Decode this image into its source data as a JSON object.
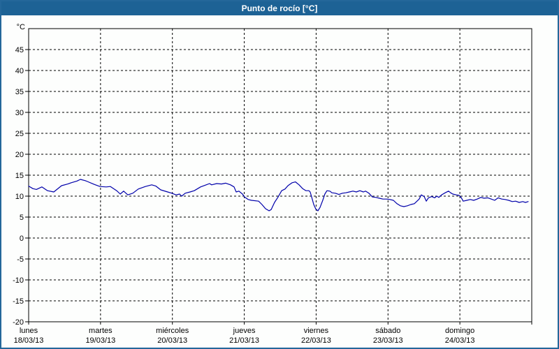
{
  "window": {
    "title": "Punto de rocío [°C]"
  },
  "colors": {
    "frame_blue": "#24679a",
    "titlebar_blue": "#1d6295",
    "title_text": "#ffffff",
    "plot_background": "#fdfefd",
    "line_blue": "#0000aa",
    "grid_color": "#000000"
  },
  "chart_data": {
    "type": "line",
    "title": "Punto de rocío [°C]",
    "ylabel": "°C",
    "xlabel": "",
    "ylim": [
      -20,
      50
    ],
    "xlim_hours": [
      0,
      168
    ],
    "grid": "dashed",
    "legend": "none",
    "y_ticks": [
      45,
      40,
      35,
      30,
      25,
      20,
      15,
      10,
      5,
      0,
      -5,
      -10,
      -15,
      -20
    ],
    "x_days": [
      {
        "name": "lunes",
        "date": "18/03/13"
      },
      {
        "name": "martes",
        "date": "19/03/13"
      },
      {
        "name": "miércoles",
        "date": "20/03/13"
      },
      {
        "name": "jueves",
        "date": "21/03/13"
      },
      {
        "name": "viernes",
        "date": "22/03/13"
      },
      {
        "name": "sábado",
        "date": "23/03/13"
      },
      {
        "name": "domingo",
        "date": "24/03/13"
      }
    ],
    "series": [
      {
        "name": "Punto de rocío",
        "color": "#0000aa",
        "points_hours_degC": [
          [
            0,
            12.4
          ],
          [
            1.4,
            11.8
          ],
          [
            2.6,
            11.6
          ],
          [
            4.4,
            12.2
          ],
          [
            6.3,
            11.3
          ],
          [
            8.4,
            11.0
          ],
          [
            11,
            12.5
          ],
          [
            13.1,
            12.9
          ],
          [
            14.2,
            13.2
          ],
          [
            16.1,
            13.6
          ],
          [
            17.3,
            14.0
          ],
          [
            18.9,
            13.7
          ],
          [
            19.6,
            13.5
          ],
          [
            21.9,
            12.8
          ],
          [
            23.8,
            12.3
          ],
          [
            25.9,
            12.2
          ],
          [
            27.3,
            12.3
          ],
          [
            29.4,
            11.3
          ],
          [
            30.6,
            10.5
          ],
          [
            31.7,
            11.2
          ],
          [
            33.1,
            10.3
          ],
          [
            34.8,
            10.7
          ],
          [
            36.6,
            11.7
          ],
          [
            39,
            12.3
          ],
          [
            41.1,
            12.7
          ],
          [
            42.5,
            12.4
          ],
          [
            44.1,
            11.5
          ],
          [
            46.4,
            11.0
          ],
          [
            47.8,
            10.7
          ],
          [
            49.2,
            10.3
          ],
          [
            50.4,
            10.5
          ],
          [
            51.1,
            10.0
          ],
          [
            52.3,
            10.7
          ],
          [
            53.9,
            11.0
          ],
          [
            55.3,
            11.3
          ],
          [
            57.4,
            12.2
          ],
          [
            59.3,
            12.7
          ],
          [
            60.4,
            13.0
          ],
          [
            61.1,
            12.7
          ],
          [
            62.8,
            13.0
          ],
          [
            64.4,
            12.9
          ],
          [
            65.8,
            13.1
          ],
          [
            67.4,
            12.7
          ],
          [
            68.6,
            12.2
          ],
          [
            69.3,
            11.0
          ],
          [
            70.2,
            11.2
          ],
          [
            71.4,
            10.5
          ],
          [
            72.1,
            9.8
          ],
          [
            73.3,
            9.2
          ],
          [
            74.4,
            9.0
          ],
          [
            76.8,
            8.8
          ],
          [
            77.9,
            8.0
          ],
          [
            79.1,
            7.0
          ],
          [
            80.3,
            6.5
          ],
          [
            81,
            6.8
          ],
          [
            82.1,
            8.5
          ],
          [
            83.3,
            9.8
          ],
          [
            84.5,
            11.3
          ],
          [
            85.6,
            11.7
          ],
          [
            86.6,
            12.5
          ],
          [
            88,
            13.2
          ],
          [
            89.1,
            13.4
          ],
          [
            90.3,
            12.7
          ],
          [
            91.5,
            11.8
          ],
          [
            92.6,
            11.3
          ],
          [
            93.6,
            11.3
          ],
          [
            94,
            11.0
          ],
          [
            94.5,
            9.8
          ],
          [
            95.2,
            8.0
          ],
          [
            95.9,
            6.9
          ],
          [
            96.6,
            6.5
          ],
          [
            97.3,
            7.3
          ],
          [
            98.2,
            9.0
          ],
          [
            98.9,
            10.5
          ],
          [
            99.6,
            11.3
          ],
          [
            100.6,
            11.2
          ],
          [
            101.3,
            10.8
          ],
          [
            102.4,
            10.7
          ],
          [
            103.6,
            10.4
          ],
          [
            104.8,
            10.7
          ],
          [
            105.9,
            10.8
          ],
          [
            107.1,
            11.0
          ],
          [
            108.3,
            11.2
          ],
          [
            109.4,
            11.0
          ],
          [
            110.6,
            11.3
          ],
          [
            111.8,
            11.0
          ],
          [
            112.5,
            11.2
          ],
          [
            113.6,
            10.7
          ],
          [
            114.8,
            9.8
          ],
          [
            116,
            9.7
          ],
          [
            117.1,
            9.5
          ],
          [
            118.3,
            9.3
          ],
          [
            119.5,
            9.3
          ],
          [
            120.6,
            9.2
          ],
          [
            121.8,
            9.0
          ],
          [
            123,
            8.2
          ],
          [
            124.1,
            7.7
          ],
          [
            125.3,
            7.5
          ],
          [
            126.5,
            7.7
          ],
          [
            127.6,
            8.0
          ],
          [
            128.8,
            8.2
          ],
          [
            130.4,
            9.3
          ],
          [
            131.1,
            10.3
          ],
          [
            132.1,
            9.9
          ],
          [
            132.8,
            8.8
          ],
          [
            133.5,
            9.6
          ],
          [
            134.6,
            9.9
          ],
          [
            135.6,
            9.6
          ],
          [
            136.3,
            10.0
          ],
          [
            137,
            9.7
          ],
          [
            137.9,
            10.3
          ],
          [
            139.1,
            10.8
          ],
          [
            140.2,
            11.2
          ],
          [
            140.9,
            10.8
          ],
          [
            141.6,
            10.5
          ],
          [
            142.8,
            10.3
          ],
          [
            143.7,
            10.2
          ],
          [
            144.4,
            9.7
          ],
          [
            145.1,
            8.8
          ],
          [
            146.3,
            9.0
          ],
          [
            147.5,
            9.2
          ],
          [
            148.6,
            9.0
          ],
          [
            149.8,
            9.3
          ],
          [
            151,
            9.7
          ],
          [
            152.1,
            9.5
          ],
          [
            153.3,
            9.6
          ],
          [
            154.5,
            9.3
          ],
          [
            155.6,
            9.0
          ],
          [
            156.8,
            9.6
          ],
          [
            158,
            9.3
          ],
          [
            159.1,
            9.2
          ],
          [
            160.3,
            9.0
          ],
          [
            161.5,
            8.7
          ],
          [
            162.6,
            8.8
          ],
          [
            163.8,
            8.5
          ],
          [
            165,
            8.7
          ],
          [
            165.9,
            8.5
          ],
          [
            166.8,
            8.7
          ]
        ]
      }
    ]
  }
}
